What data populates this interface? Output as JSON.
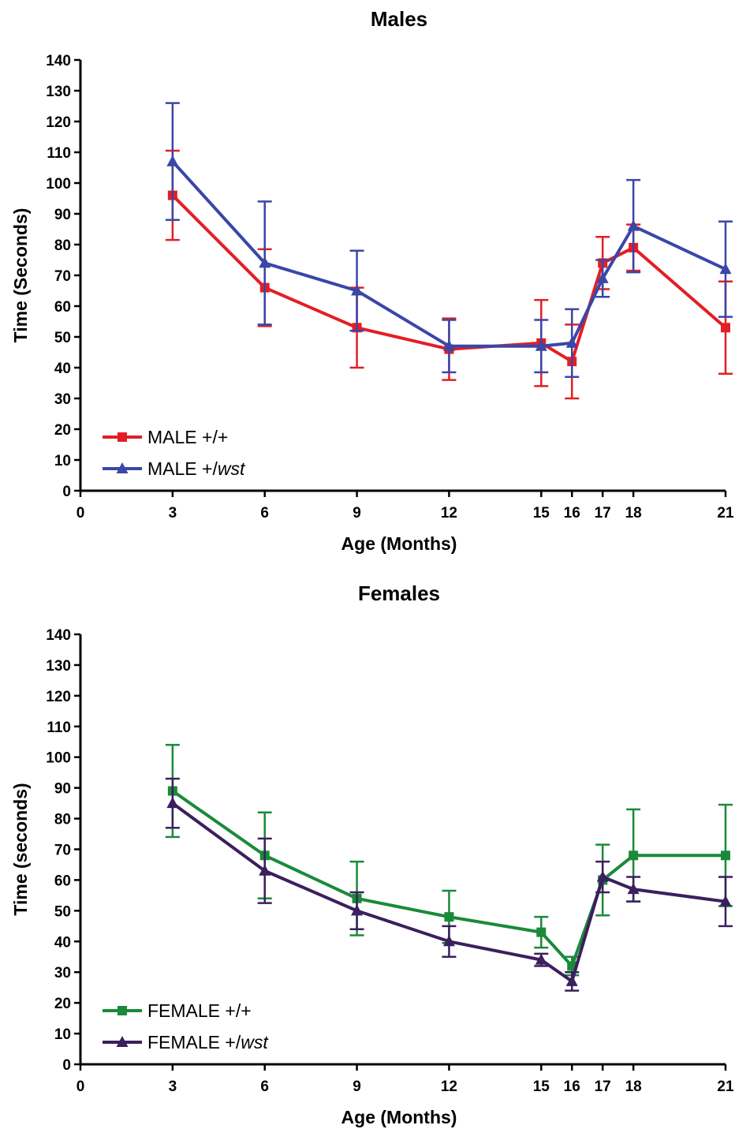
{
  "chart_data": [
    {
      "type": "line",
      "title": "Males",
      "xlabel": "Age (Months)",
      "ylabel": "Time (Seconds)",
      "xlim": [
        0,
        21
      ],
      "ylim": [
        0,
        140
      ],
      "xticks": [
        0,
        3,
        6,
        9,
        12,
        15,
        16,
        17,
        18,
        21
      ],
      "yticks": [
        0,
        10,
        20,
        30,
        40,
        50,
        60,
        70,
        80,
        90,
        100,
        110,
        120,
        130,
        140
      ],
      "legend_position": "bottom-left",
      "x": [
        3,
        6,
        9,
        12,
        15,
        16,
        17,
        18,
        21
      ],
      "series": [
        {
          "name": "MALE +/+",
          "name_parts": [
            "MALE +/+"
          ],
          "marker": "square",
          "color": "#e31e24",
          "values": [
            96,
            66,
            53,
            46,
            48,
            42,
            74,
            79,
            53
          ],
          "errors": [
            14.5,
            12.5,
            13,
            10,
            14,
            12,
            8.5,
            7.5,
            15
          ]
        },
        {
          "name": "MALE +/wst",
          "name_parts": [
            "MALE +/",
            "wst"
          ],
          "marker": "triangle",
          "color": "#3a46a8",
          "values": [
            107,
            74,
            65,
            47,
            47,
            48,
            69,
            86,
            72
          ],
          "errors": [
            19,
            20,
            13,
            8.5,
            8.5,
            11,
            6,
            15,
            15.5
          ]
        }
      ]
    },
    {
      "type": "line",
      "title": "Females",
      "xlabel": "Age (Months)",
      "ylabel": "Time (seconds)",
      "xlim": [
        0,
        21
      ],
      "ylim": [
        0,
        140
      ],
      "xticks": [
        0,
        3,
        6,
        9,
        12,
        15,
        16,
        17,
        18,
        21
      ],
      "yticks": [
        0,
        10,
        20,
        30,
        40,
        50,
        60,
        70,
        80,
        90,
        100,
        110,
        120,
        130,
        140
      ],
      "legend_position": "bottom-left",
      "x": [
        3,
        6,
        9,
        12,
        15,
        16,
        17,
        18,
        21
      ],
      "series": [
        {
          "name": "FEMALE +/+",
          "name_parts": [
            "FEMALE +/+"
          ],
          "marker": "square",
          "color": "#1a8a3a",
          "values": [
            89,
            68,
            54,
            48,
            43,
            32,
            60,
            68,
            68
          ],
          "errors": [
            15,
            14,
            12,
            8.5,
            5,
            3,
            11.5,
            15,
            16.5
          ]
        },
        {
          "name": "FEMALE +/wst",
          "name_parts": [
            "FEMALE +/",
            "wst"
          ],
          "marker": "triangle",
          "color": "#3b1f5e",
          "values": [
            85,
            63,
            50,
            40,
            34,
            27,
            61,
            57,
            53
          ],
          "errors": [
            8,
            10.5,
            6,
            5,
            2,
            3,
            5,
            4,
            8
          ]
        }
      ]
    }
  ]
}
